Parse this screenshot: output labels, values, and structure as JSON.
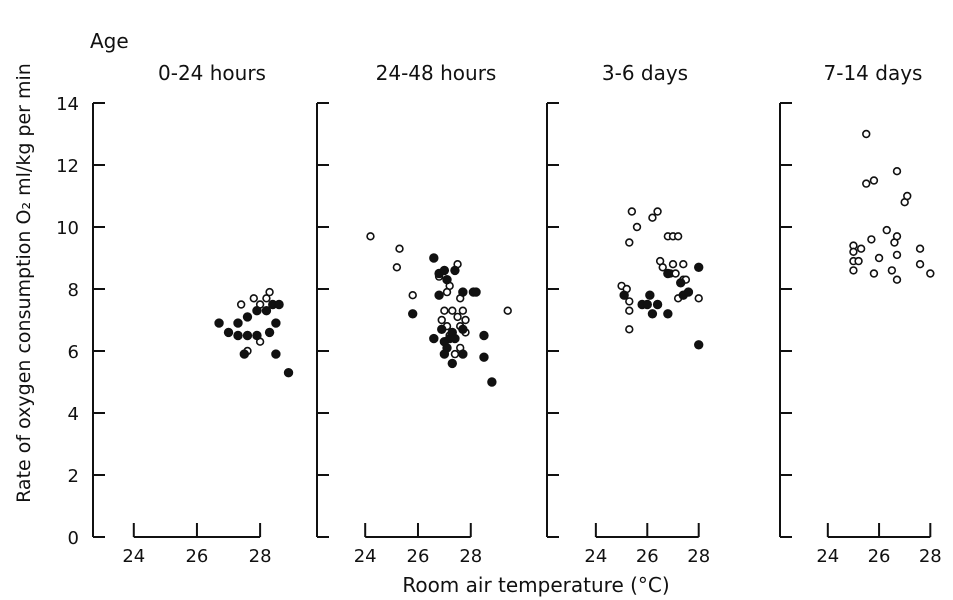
{
  "chart_data": {
    "type": "scatter",
    "ylabel": "Rate of oxygen consumption O₂ ml/kg per min",
    "xlabel": "Room air temperature (°C)",
    "age_label": "Age",
    "ylim": [
      0,
      14
    ],
    "yticks": [
      0,
      2,
      4,
      6,
      8,
      10,
      12,
      14
    ],
    "grid": false,
    "panels": [
      {
        "title": "0-24 hours",
        "xticks": [
          24,
          26,
          28
        ],
        "xlim": [
          23.5,
          29.2
        ],
        "open": [
          [
            27.4,
            7.5
          ],
          [
            27.8,
            7.7
          ],
          [
            28.3,
            7.9
          ],
          [
            28.2,
            7.7
          ],
          [
            28.0,
            7.5
          ],
          [
            27.6,
            6.0
          ],
          [
            28.0,
            6.3
          ]
        ],
        "filled": [
          [
            26.7,
            6.9
          ],
          [
            27.0,
            6.6
          ],
          [
            27.3,
            6.9
          ],
          [
            27.6,
            7.1
          ],
          [
            27.9,
            7.3
          ],
          [
            28.2,
            7.3
          ],
          [
            28.4,
            7.5
          ],
          [
            28.6,
            7.5
          ],
          [
            27.3,
            6.5
          ],
          [
            27.6,
            6.5
          ],
          [
            27.9,
            6.5
          ],
          [
            28.3,
            6.6
          ],
          [
            28.5,
            6.9
          ],
          [
            27.5,
            5.9
          ],
          [
            28.5,
            5.9
          ],
          [
            28.9,
            5.3
          ]
        ]
      },
      {
        "title": "24-48 hours",
        "xticks": [
          24,
          26,
          28
        ],
        "xlim": [
          23.5,
          29.6
        ],
        "open": [
          [
            24.2,
            9.7
          ],
          [
            25.3,
            9.3
          ],
          [
            25.2,
            8.7
          ],
          [
            25.8,
            7.8
          ],
          [
            26.8,
            8.4
          ],
          [
            27.2,
            8.1
          ],
          [
            27.5,
            8.8
          ],
          [
            27.1,
            7.9
          ],
          [
            27.6,
            7.7
          ],
          [
            27.0,
            7.3
          ],
          [
            27.3,
            7.3
          ],
          [
            27.7,
            7.3
          ],
          [
            26.9,
            7.0
          ],
          [
            27.5,
            7.1
          ],
          [
            27.8,
            7.0
          ],
          [
            27.1,
            6.8
          ],
          [
            27.6,
            6.8
          ],
          [
            27.8,
            6.6
          ],
          [
            27.2,
            6.5
          ],
          [
            27.4,
            5.9
          ],
          [
            27.6,
            6.1
          ],
          [
            29.4,
            7.3
          ]
        ],
        "filled": [
          [
            25.8,
            7.2
          ],
          [
            26.6,
            9.0
          ],
          [
            26.8,
            8.5
          ],
          [
            27.0,
            8.6
          ],
          [
            27.4,
            8.6
          ],
          [
            27.1,
            8.3
          ],
          [
            26.8,
            7.8
          ],
          [
            27.7,
            7.9
          ],
          [
            28.1,
            7.9
          ],
          [
            28.2,
            7.9
          ],
          [
            26.6,
            6.4
          ],
          [
            26.9,
            6.7
          ],
          [
            27.2,
            6.4
          ],
          [
            27.3,
            6.6
          ],
          [
            27.0,
            6.3
          ],
          [
            27.1,
            6.1
          ],
          [
            27.4,
            6.4
          ],
          [
            27.7,
            6.7
          ],
          [
            27.7,
            5.9
          ],
          [
            27.0,
            5.9
          ],
          [
            27.3,
            5.6
          ],
          [
            28.5,
            6.5
          ],
          [
            28.5,
            5.8
          ],
          [
            28.8,
            5.0
          ]
        ]
      },
      {
        "title": "3-6 days",
        "xticks": [
          24,
          26,
          28
        ],
        "xlim": [
          23.5,
          28.4
        ],
        "open": [
          [
            25.4,
            10.5
          ],
          [
            25.6,
            10.0
          ],
          [
            25.3,
            9.5
          ],
          [
            26.2,
            10.3
          ],
          [
            26.4,
            10.5
          ],
          [
            26.5,
            8.9
          ],
          [
            26.6,
            8.7
          ],
          [
            26.8,
            9.7
          ],
          [
            27.0,
            9.7
          ],
          [
            27.2,
            9.7
          ],
          [
            27.0,
            8.8
          ],
          [
            27.4,
            8.8
          ],
          [
            26.9,
            8.5
          ],
          [
            27.1,
            8.5
          ],
          [
            27.4,
            8.3
          ],
          [
            27.5,
            8.3
          ],
          [
            25.0,
            8.1
          ],
          [
            25.2,
            8.0
          ],
          [
            25.3,
            7.6
          ],
          [
            25.3,
            7.3
          ],
          [
            25.3,
            6.7
          ],
          [
            27.2,
            7.7
          ],
          [
            28.0,
            7.7
          ]
        ],
        "filled": [
          [
            25.1,
            7.8
          ],
          [
            25.8,
            7.5
          ],
          [
            26.0,
            7.5
          ],
          [
            26.1,
            7.8
          ],
          [
            26.4,
            7.5
          ],
          [
            26.2,
            7.2
          ],
          [
            26.8,
            8.5
          ],
          [
            26.8,
            7.2
          ],
          [
            27.3,
            8.2
          ],
          [
            27.4,
            7.8
          ],
          [
            27.6,
            7.9
          ],
          [
            28.0,
            8.7
          ],
          [
            28.0,
            6.2
          ]
        ]
      },
      {
        "title": "7-14 days",
        "xticks": [
          24,
          26,
          28
        ],
        "xlim": [
          23.5,
          28.3
        ],
        "open": [
          [
            25.5,
            13.0
          ],
          [
            25.5,
            11.4
          ],
          [
            25.8,
            11.5
          ],
          [
            26.7,
            11.8
          ],
          [
            27.0,
            10.8
          ],
          [
            27.1,
            11.0
          ],
          [
            25.0,
            9.4
          ],
          [
            25.0,
            9.2
          ],
          [
            25.3,
            9.3
          ],
          [
            25.0,
            8.9
          ],
          [
            25.2,
            8.9
          ],
          [
            25.0,
            8.6
          ],
          [
            25.7,
            9.6
          ],
          [
            25.8,
            8.5
          ],
          [
            26.0,
            9.0
          ],
          [
            26.3,
            9.9
          ],
          [
            26.6,
            9.5
          ],
          [
            26.7,
            9.7
          ],
          [
            26.7,
            9.1
          ],
          [
            26.5,
            8.6
          ],
          [
            26.7,
            8.3
          ],
          [
            27.6,
            9.3
          ],
          [
            27.6,
            8.8
          ],
          [
            28.0,
            8.5
          ]
        ],
        "filled": []
      }
    ]
  }
}
